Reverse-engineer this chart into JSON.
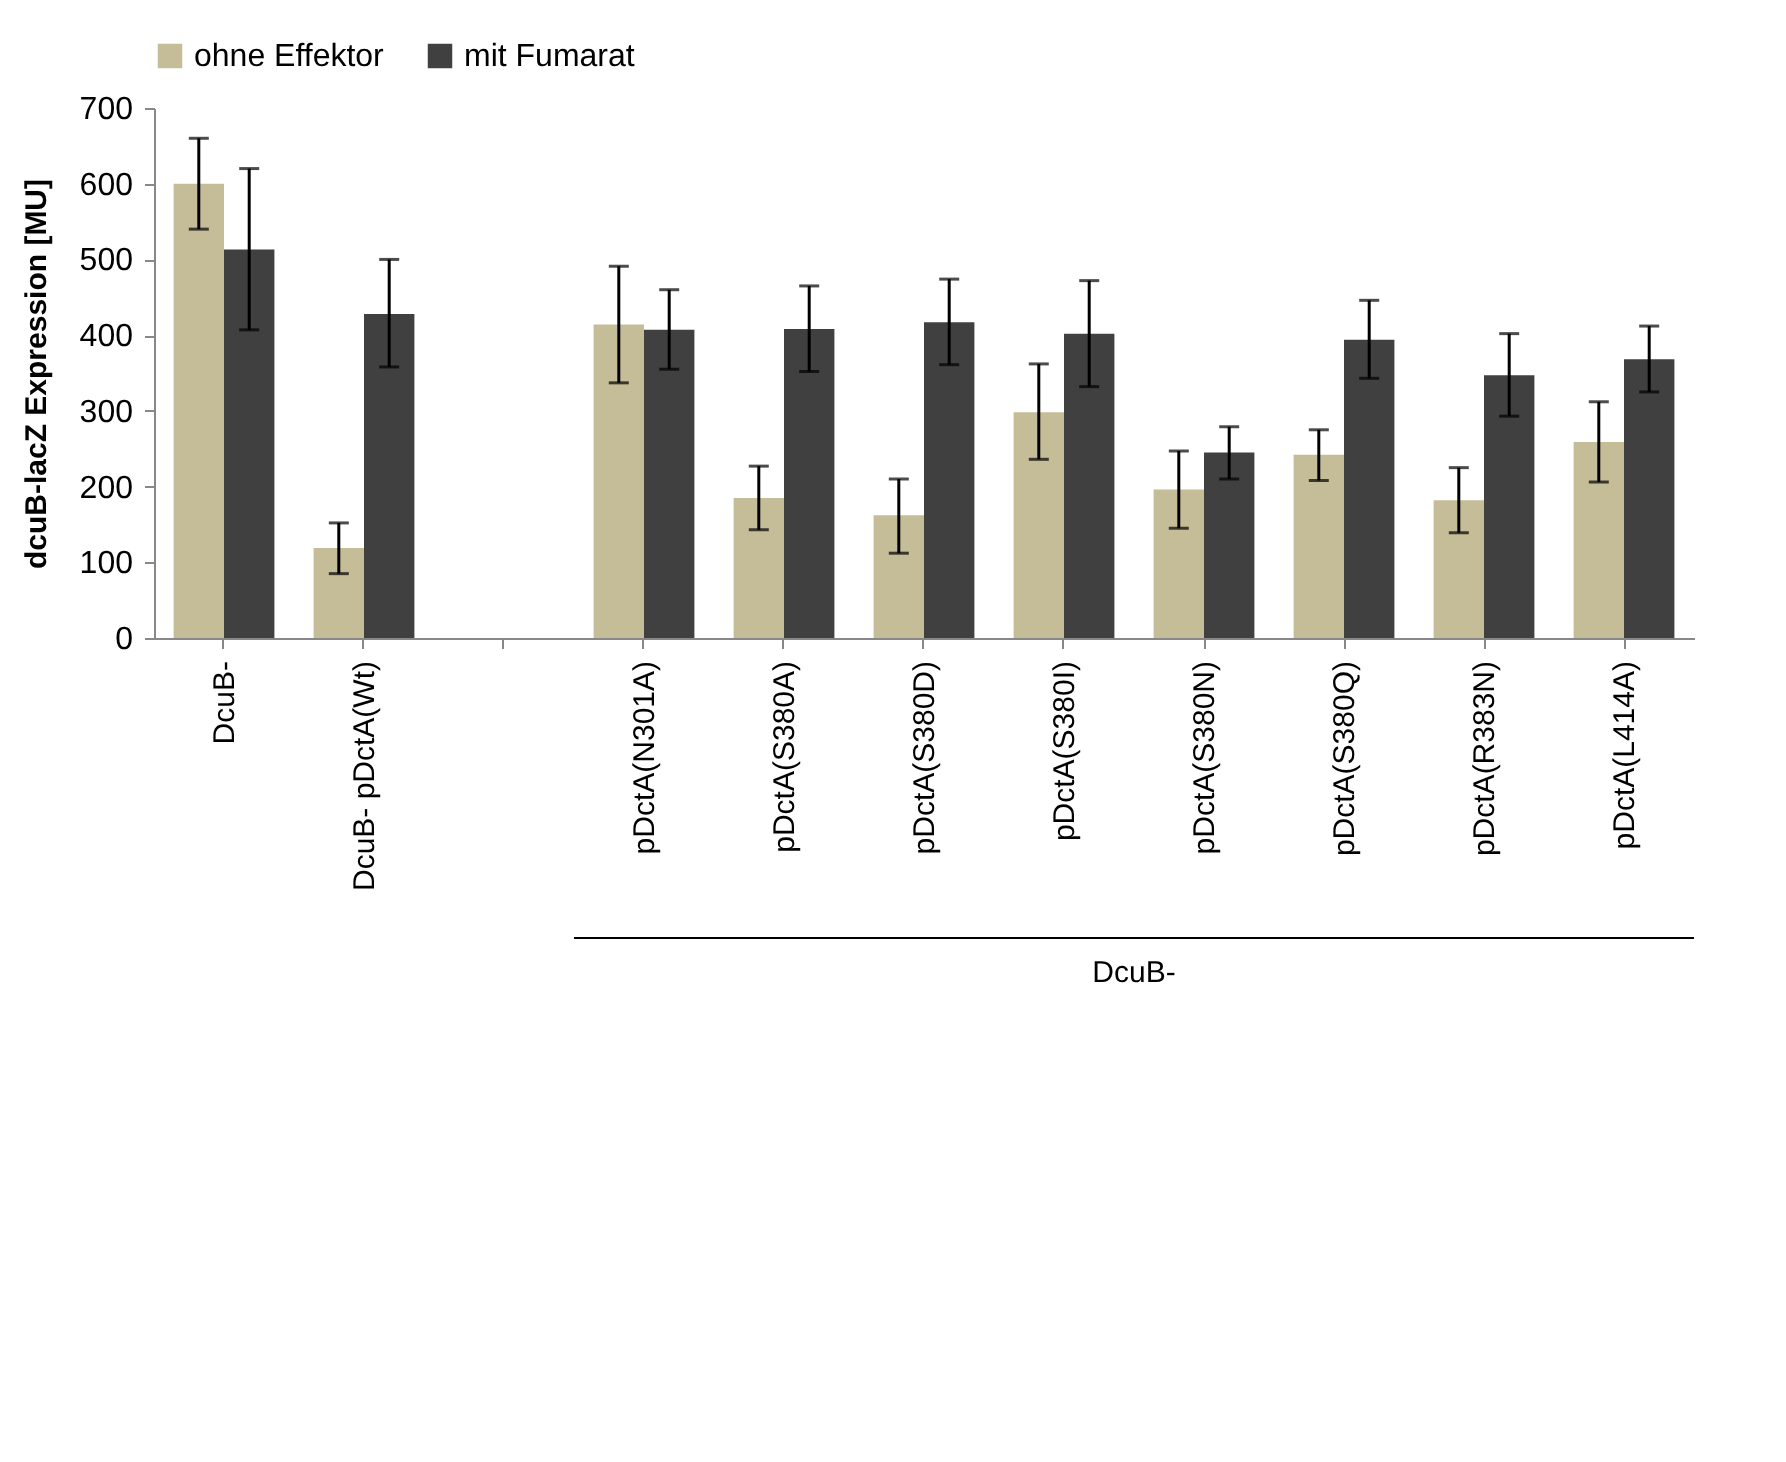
{
  "chart_data": {
    "type": "bar",
    "ylabel": "dcuB-lacZ Expression [MU]",
    "categories": [
      "DcuB-",
      "DcuB- pDctA(Wt)",
      null,
      "pDctA(N301A)",
      "pDctA(S380A)",
      "pDctA(S380D)",
      "pDctA(S380I)",
      "pDctA(S380N)",
      "pDctA(S380Q)",
      "pDctA(R383N)",
      "pDctA(L414A)"
    ],
    "series": [
      {
        "name": "ohne Effektor",
        "color": "#c4bd97",
        "values": [
          600,
          119,
          null,
          414,
          185,
          162,
          298,
          196,
          242,
          182,
          259
        ],
        "errors": [
          [
            540,
            660
          ],
          [
            85,
            152
          ],
          null,
          [
            337,
            491
          ],
          [
            143,
            227
          ],
          [
            112,
            210
          ],
          [
            236,
            362
          ],
          [
            145,
            247
          ],
          [
            208,
            275
          ],
          [
            139,
            225
          ],
          [
            206,
            312
          ]
        ]
      },
      {
        "name": "mit Fumarat",
        "color": "#404040",
        "values": [
          513,
          428,
          null,
          407,
          408,
          417,
          402,
          245,
          394,
          347,
          368
        ],
        "errors": [
          [
            407,
            620
          ],
          [
            358,
            500
          ],
          null,
          [
            355,
            460
          ],
          [
            352,
            465
          ],
          [
            361,
            474
          ],
          [
            332,
            472
          ],
          [
            210,
            279
          ],
          [
            343,
            446
          ],
          [
            293,
            402
          ],
          [
            325,
            412
          ]
        ]
      }
    ],
    "annotations": [
      "DcuB-"
    ],
    "ylim": [
      0,
      700
    ],
    "yticks": [
      0,
      100,
      200,
      300,
      400,
      500,
      600,
      700
    ],
    "grid": false,
    "legend": "top"
  }
}
